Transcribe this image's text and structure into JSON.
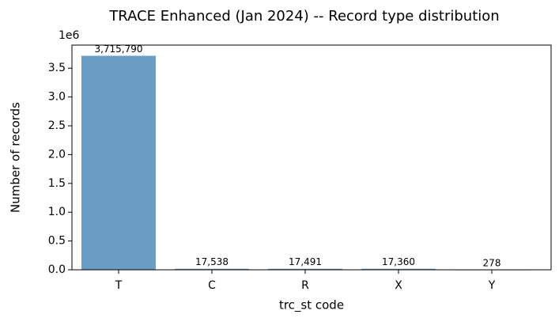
{
  "chart_data": {
    "type": "bar",
    "title": "TRACE Enhanced (Jan 2024) -- Record type distribution",
    "x_label": "trc_st code",
    "y_label": "Number of records",
    "y_offset_label": "1e6",
    "categories": [
      "T",
      "C",
      "R",
      "X",
      "Y"
    ],
    "values": [
      3715790,
      17538,
      17491,
      17360,
      278
    ],
    "value_labels": [
      "3,715,790",
      "17,538",
      "17,491",
      "17,360",
      "278"
    ],
    "color": "#6b9dc4",
    "ylim": [
      0,
      3901580
    ],
    "yticks": [
      {
        "value": 0,
        "label": "0.0"
      },
      {
        "value": 500000,
        "label": "0.5"
      },
      {
        "value": 1000000,
        "label": "1.0"
      },
      {
        "value": 1500000,
        "label": "1.5"
      },
      {
        "value": 2000000,
        "label": "2.0"
      },
      {
        "value": 2500000,
        "label": "2.5"
      },
      {
        "value": 3000000,
        "label": "3.0"
      },
      {
        "value": 3500000,
        "label": "3.5"
      }
    ]
  }
}
